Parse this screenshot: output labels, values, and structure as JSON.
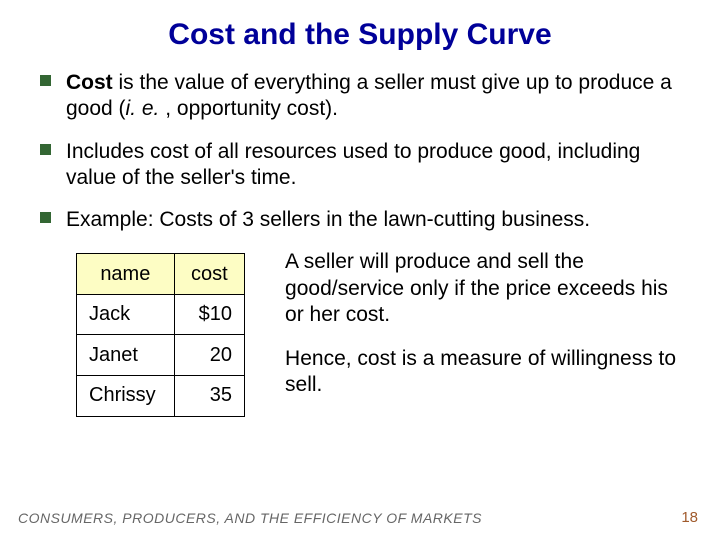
{
  "title": "Cost and the Supply Curve",
  "bullets": {
    "b1_bold": "Cost",
    "b1_rest": " is the value of everything a seller must give up to produce a good (",
    "b1_italic": "i. e.",
    "b1_tail": " , opportunity cost).",
    "b2": "Includes cost of all resources used to produce good, including value of the seller's time.",
    "b3": "Example:  Costs of 3 sellers in the lawn-cutting business."
  },
  "table": {
    "header_name": "name",
    "header_cost": "cost",
    "rows": [
      {
        "name": "Jack",
        "cost": "$10"
      },
      {
        "name": "Janet",
        "cost": "20"
      },
      {
        "name": "Chrissy",
        "cost": "35"
      }
    ]
  },
  "right": {
    "p1": "A seller will produce and sell the good/service only if the price exceeds his or her cost.",
    "p2": "Hence, cost is a measure of willingness to sell."
  },
  "footer": {
    "left": "CONSUMERS, PRODUCERS, AND THE EFFICIENCY OF MARKETS",
    "page": "18"
  },
  "colors": {
    "title": "#000099",
    "bullet_marker": "#336633",
    "table_header_bg": "#fdfdc4",
    "footer_text": "#666666",
    "page_number": "#a05a2c"
  }
}
